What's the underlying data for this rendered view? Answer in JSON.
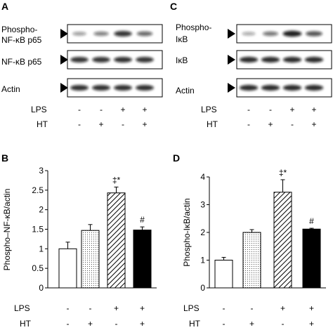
{
  "panels": {
    "A": {
      "letter": "A",
      "blots": [
        {
          "label": "Phospho-\nNF-κB p65",
          "intensities": [
            0.3,
            0.45,
            0.8,
            0.55
          ]
        },
        {
          "label": "NF-κB p65",
          "intensities": [
            0.8,
            0.8,
            0.82,
            0.8
          ]
        },
        {
          "label": "Actin",
          "intensities": [
            0.82,
            0.82,
            0.82,
            0.82
          ]
        }
      ],
      "conditions": {
        "LPS": {
          "label": "LPS",
          "marks": [
            "-",
            "-",
            "+",
            "+"
          ]
        },
        "HT": {
          "label": "HT",
          "marks": [
            "-",
            "+",
            "-",
            "+"
          ]
        }
      }
    },
    "C": {
      "letter": "C",
      "blots": [
        {
          "label": "Phospho-\nIκB",
          "intensities": [
            0.25,
            0.5,
            0.9,
            0.65
          ]
        },
        {
          "label": "IκB",
          "intensities": [
            0.85,
            0.85,
            0.85,
            0.85
          ]
        },
        {
          "label": "Actin",
          "intensities": [
            0.85,
            0.85,
            0.85,
            0.85
          ]
        }
      ],
      "conditions": {
        "LPS": {
          "label": "LPS",
          "marks": [
            "-",
            "-",
            "+",
            "+"
          ]
        },
        "HT": {
          "label": "HT",
          "marks": [
            "-",
            "+",
            "-",
            "+"
          ]
        }
      }
    },
    "B": {
      "letter": "B"
    },
    "D": {
      "letter": "D"
    }
  },
  "bar_styles": [
    "open",
    "dotted",
    "hatched",
    "solid"
  ],
  "colors": {
    "ink": "#000000",
    "band": "#111111",
    "paper": "#ffffff"
  },
  "chart_data": [
    {
      "panel": "B",
      "type": "bar",
      "ylabel": "Phospho–NF-κB/actin",
      "xlabel": "",
      "ylim": [
        0,
        3
      ],
      "yticks": [
        "0",
        "0.5",
        "1",
        "1.5",
        "2",
        "2.5",
        "3"
      ],
      "values": [
        1.0,
        1.47,
        2.43,
        1.48
      ],
      "errors": [
        0.17,
        0.15,
        0.15,
        0.08
      ],
      "annotations": [
        "",
        "",
        "‡*",
        "#"
      ],
      "conditions": {
        "LPS": {
          "label": "LPS",
          "marks": [
            "-",
            "-",
            "+",
            "+"
          ]
        },
        "HT": {
          "label": "HT",
          "marks": [
            "-",
            "+",
            "-",
            "+"
          ]
        }
      }
    },
    {
      "panel": "D",
      "type": "bar",
      "ylabel": "Phospho-IκB/actin",
      "xlabel": "",
      "ylim": [
        0,
        4
      ],
      "yticks": [
        "0",
        "1",
        "2",
        "3",
        "4"
      ],
      "values": [
        1.0,
        2.0,
        3.45,
        2.12
      ],
      "errors": [
        0.1,
        0.1,
        0.45,
        0.03
      ],
      "annotations": [
        "",
        "",
        "‡*",
        "#"
      ],
      "conditions": {
        "LPS": {
          "label": "LPS",
          "marks": [
            "-",
            "-",
            "+",
            "+"
          ]
        },
        "HT": {
          "label": "HT",
          "marks": [
            "-",
            "+",
            "-",
            "+"
          ]
        }
      }
    }
  ]
}
